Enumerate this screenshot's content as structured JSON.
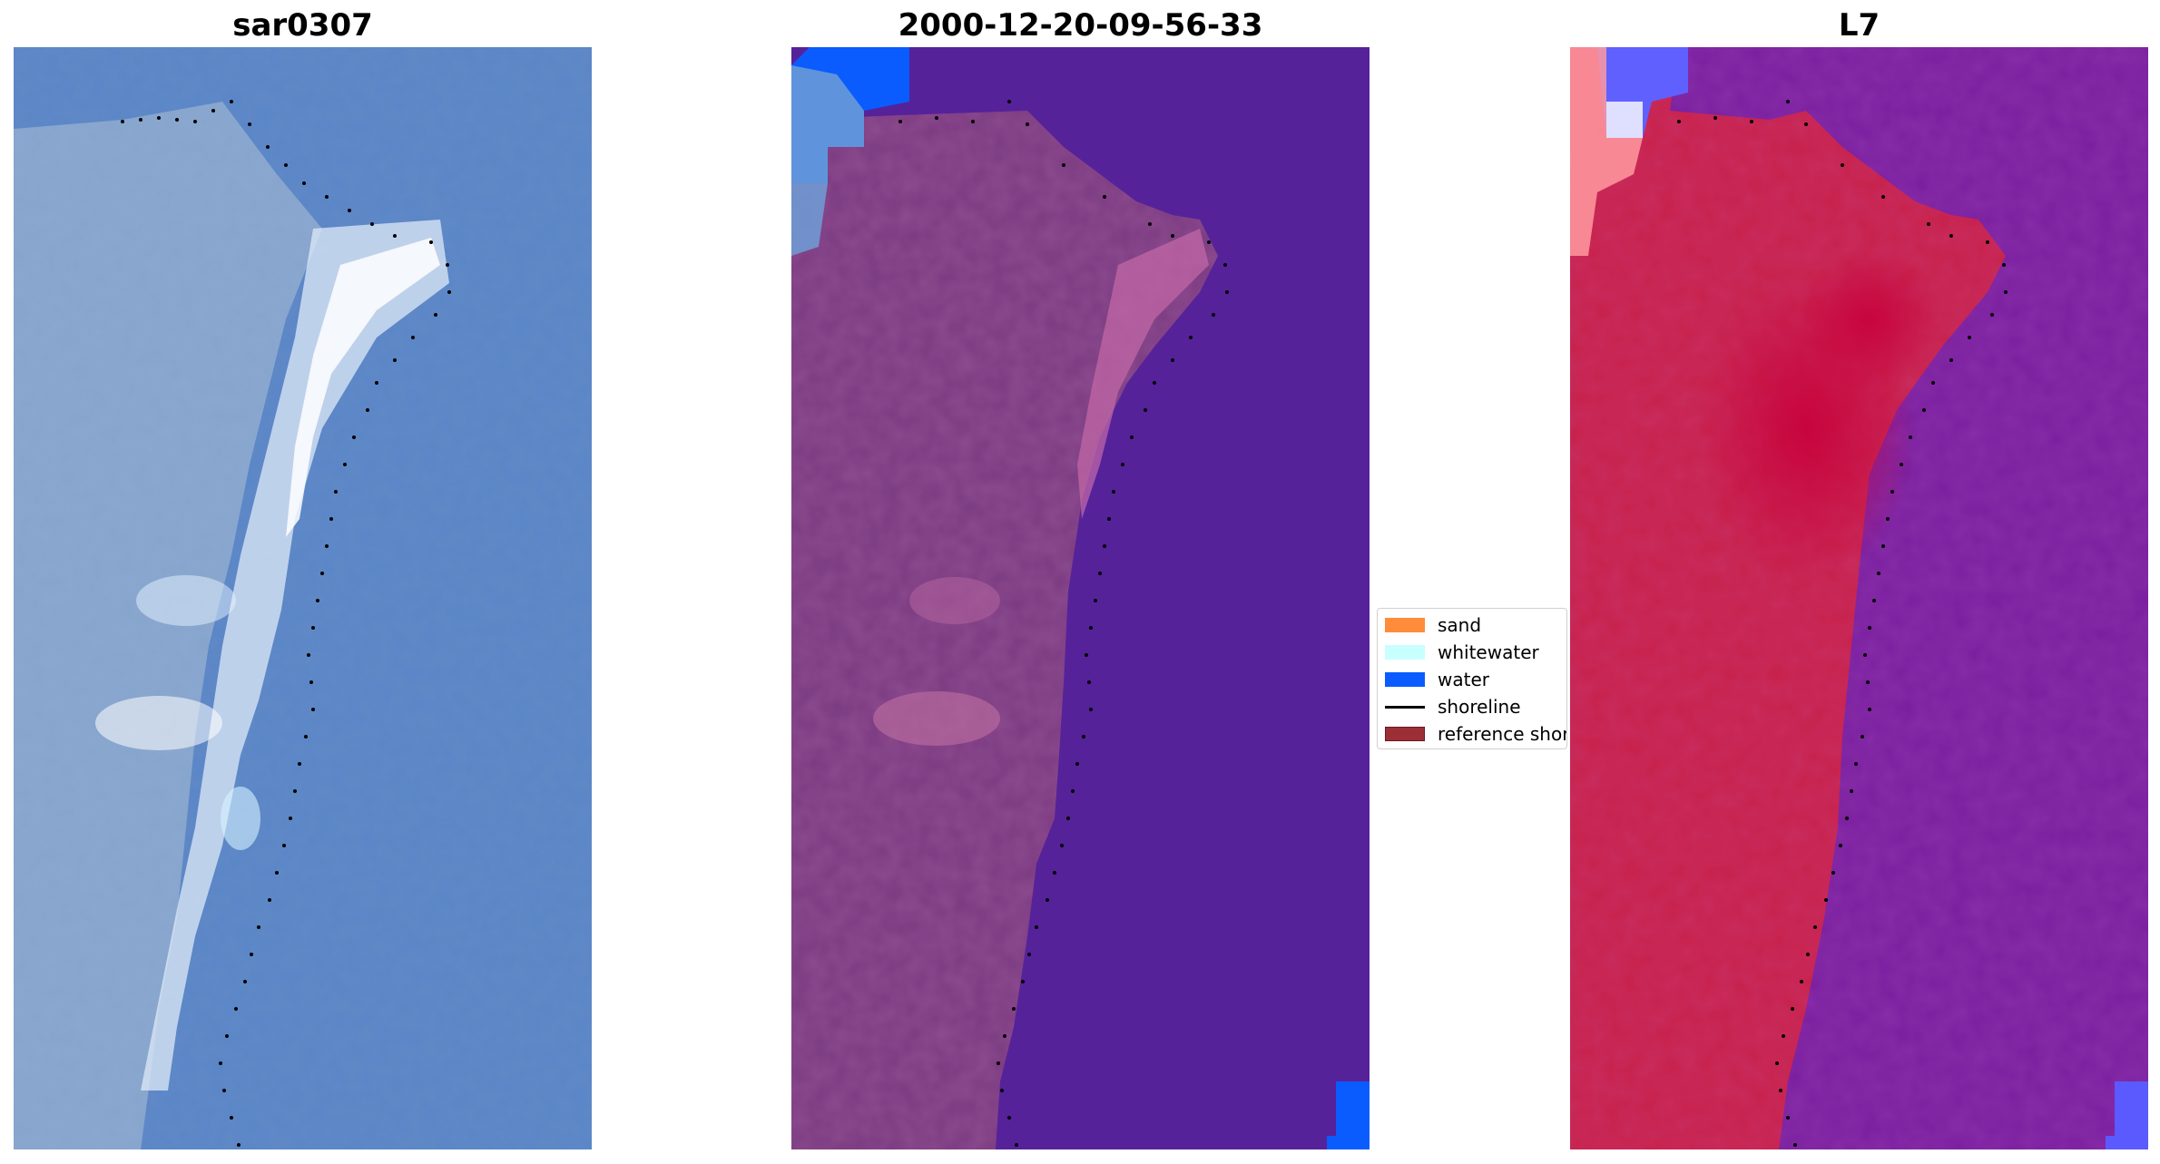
{
  "panels": [
    {
      "title": "sar0307",
      "kind": "rgb"
    },
    {
      "title": "2000-12-20-09-56-33",
      "kind": "classified"
    },
    {
      "title": "L7",
      "kind": "index"
    }
  ],
  "legend": {
    "items": [
      {
        "label": "sand",
        "color": "#ff8c3a",
        "style": "patch"
      },
      {
        "label": "whitewater",
        "color": "#c8ffff",
        "style": "patch"
      },
      {
        "label": "water",
        "color": "#0a5cff",
        "style": "patch"
      },
      {
        "label": "shoreline",
        "color": "#000000",
        "style": "line"
      },
      {
        "label": "reference shoreline",
        "color": "#9b2f35",
        "style": "patch"
      }
    ]
  },
  "colors": {
    "ocean_rgb": "#5a86c8",
    "land_rgb": "#8aa8d0",
    "classified_water": "#56229a",
    "classified_land": "#7a3a80",
    "index_land": "#c8204a",
    "index_water": "#7a1e9e"
  }
}
